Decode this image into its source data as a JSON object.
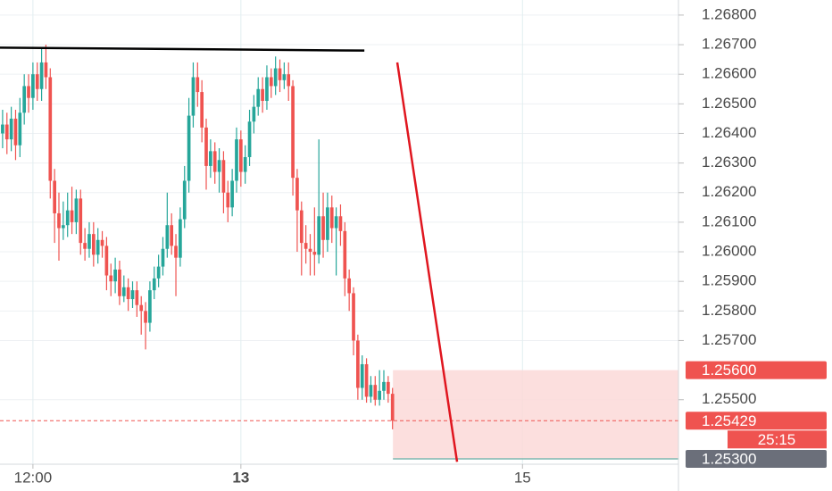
{
  "chart_data": {
    "type": "candlestick",
    "categories": [
      null,
      null,
      null,
      null,
      null,
      null,
      null,
      null,
      null,
      null,
      null,
      null,
      null,
      null,
      null,
      null,
      null,
      null,
      null,
      null,
      null,
      null,
      null,
      null,
      null,
      null,
      null,
      null,
      null,
      null,
      null,
      null,
      null,
      null,
      null,
      null,
      null,
      null,
      null,
      null,
      null,
      null,
      null,
      null,
      null,
      null,
      null,
      null,
      null,
      null,
      null,
      null,
      null,
      null,
      null,
      null,
      null,
      null,
      null,
      null,
      null,
      null,
      null,
      null,
      null,
      null,
      null,
      null,
      null,
      null,
      null,
      null,
      null,
      null,
      null,
      null,
      null,
      null,
      null,
      null,
      null,
      null,
      null,
      null,
      null,
      null,
      null,
      null,
      null,
      null,
      null
    ],
    "open": [
      1.264,
      1.2643,
      1.2638,
      1.2645,
      1.2636,
      1.2647,
      1.2656,
      1.2652,
      1.266,
      1.2655,
      1.2664,
      1.2659,
      1.2624,
      1.2613,
      1.2608,
      1.2609,
      1.2614,
      1.261,
      1.2618,
      1.2603,
      1.2601,
      1.2606,
      1.2599,
      1.2604,
      1.2602,
      1.2592,
      1.259,
      1.2594,
      1.2585,
      1.2588,
      1.2584,
      1.2587,
      1.2582,
      1.258,
      1.2576,
      1.2587,
      1.2591,
      1.2595,
      1.2601,
      1.2609,
      1.2602,
      1.2598,
      1.2611,
      1.2624,
      1.2646,
      1.2659,
      1.2654,
      1.2642,
      1.2629,
      1.2634,
      1.2627,
      1.2631,
      1.262,
      1.2615,
      1.2624,
      1.2638,
      1.2627,
      1.2632,
      1.2644,
      1.2649,
      1.2655,
      1.2651,
      1.2659,
      1.2656,
      1.2662,
      1.2658,
      1.266,
      1.2656,
      1.2625,
      1.2614,
      1.2603,
      1.2601,
      1.26,
      1.2599,
      1.2612,
      1.2604,
      1.2615,
      1.2608,
      1.2612,
      1.2607,
      1.2591,
      1.2586,
      1.257,
      1.2554,
      1.2562,
      1.2551,
      1.2555,
      1.255,
      1.2553,
      1.2556,
      1.2552
    ],
    "high": [
      1.2648,
      1.2647,
      1.2649,
      1.2648,
      1.2652,
      1.266,
      1.266,
      1.2664,
      1.2664,
      1.2669,
      1.267,
      1.2662,
      1.2628,
      1.262,
      1.2617,
      1.262,
      1.2622,
      1.2621,
      1.2621,
      1.2608,
      1.261,
      1.261,
      1.2608,
      1.2607,
      1.2605,
      1.2596,
      1.2598,
      1.2597,
      1.2592,
      1.2591,
      1.259,
      1.259,
      1.2585,
      1.2583,
      1.259,
      1.2595,
      1.2599,
      1.2605,
      1.262,
      1.2613,
      1.2606,
      1.2615,
      1.2629,
      1.2652,
      1.2664,
      1.2664,
      1.2658,
      1.2645,
      1.2638,
      1.2637,
      1.2635,
      1.2634,
      1.2624,
      1.2628,
      1.2642,
      1.2641,
      1.2636,
      1.2648,
      1.2653,
      1.2659,
      1.2659,
      1.2663,
      1.2662,
      1.2666,
      1.2665,
      1.2664,
      1.2664,
      1.2658,
      1.2628,
      1.2617,
      1.2609,
      1.2606,
      1.2615,
      1.2638,
      1.262,
      1.262,
      1.2619,
      1.2615,
      1.2616,
      1.261,
      1.2594,
      1.2588,
      1.2572,
      1.2565,
      1.2564,
      1.2558,
      1.2558,
      1.256,
      1.256,
      1.2558,
      1.2554
    ],
    "low": [
      1.2635,
      1.2633,
      1.2634,
      1.2631,
      1.2632,
      1.2643,
      1.2647,
      1.2648,
      1.2651,
      1.2651,
      1.2655,
      1.2618,
      1.2603,
      1.2597,
      1.2604,
      1.2605,
      1.2606,
      1.2606,
      1.2599,
      1.2597,
      1.2598,
      1.2595,
      1.2596,
      1.2598,
      1.2587,
      1.2585,
      1.2586,
      1.2582,
      1.2583,
      1.258,
      1.2581,
      1.2578,
      1.2572,
      1.2567,
      1.2573,
      1.2584,
      1.2588,
      1.2592,
      1.2598,
      1.2599,
      1.2585,
      1.2595,
      1.2608,
      1.262,
      1.2642,
      1.2649,
      1.2637,
      1.2621,
      1.2625,
      1.2623,
      1.262,
      1.2613,
      1.261,
      1.2612,
      1.262,
      1.2622,
      1.2623,
      1.2629,
      1.264,
      1.2646,
      1.2647,
      1.2648,
      1.2652,
      1.2653,
      1.2654,
      1.2655,
      1.2651,
      1.2619,
      1.26,
      1.2592,
      1.2596,
      1.2592,
      1.2592,
      1.2596,
      1.2598,
      1.26,
      1.2603,
      1.2592,
      1.2602,
      1.2585,
      1.258,
      1.2565,
      1.255,
      1.255,
      1.2549,
      1.2549,
      1.2548,
      1.2548,
      1.255,
      1.2549,
      1.254
    ],
    "close": [
      1.2643,
      1.2638,
      1.2645,
      1.2636,
      1.2647,
      1.2656,
      1.2652,
      1.266,
      1.2655,
      1.2664,
      1.2659,
      1.2624,
      1.2613,
      1.2608,
      1.2609,
      1.2614,
      1.261,
      1.2618,
      1.2603,
      1.2601,
      1.2606,
      1.2599,
      1.2604,
      1.2602,
      1.2592,
      1.259,
      1.2594,
      1.2585,
      1.2588,
      1.2584,
      1.2587,
      1.2582,
      1.258,
      1.2576,
      1.2587,
      1.2591,
      1.2595,
      1.2601,
      1.2609,
      1.2602,
      1.2598,
      1.2611,
      1.2624,
      1.2646,
      1.2659,
      1.2654,
      1.2642,
      1.2629,
      1.2634,
      1.2627,
      1.2631,
      1.262,
      1.2615,
      1.2624,
      1.2638,
      1.2627,
      1.2632,
      1.2644,
      1.2649,
      1.2655,
      1.2651,
      1.2659,
      1.2656,
      1.2662,
      1.2658,
      1.266,
      1.2656,
      1.2625,
      1.2614,
      1.2603,
      1.2601,
      1.26,
      1.2599,
      1.2612,
      1.2604,
      1.2615,
      1.2608,
      1.2612,
      1.2607,
      1.2591,
      1.2586,
      1.257,
      1.2554,
      1.2562,
      1.2551,
      1.2555,
      1.255,
      1.2553,
      1.2556,
      1.2552,
      1.25429
    ],
    "up_color": "#26a69a",
    "down_color": "#ef5350",
    "xlim": [
      -0.6,
      156
    ],
    "xticks": [
      {
        "value": 7,
        "label": "12:00"
      },
      {
        "value": 55,
        "label": "13"
      },
      {
        "value": 120,
        "label": "15"
      }
    ],
    "ylim": [
      1.25282,
      1.26851
    ],
    "yticks": [
      {
        "value": 1.268,
        "label": "1.26800"
      },
      {
        "value": 1.267,
        "label": "1.26700"
      },
      {
        "value": 1.266,
        "label": "1.26600"
      },
      {
        "value": 1.265,
        "label": "1.26500"
      },
      {
        "value": 1.264,
        "label": "1.26400"
      },
      {
        "value": 1.263,
        "label": "1.26300"
      },
      {
        "value": 1.262,
        "label": "1.26200"
      },
      {
        "value": 1.261,
        "label": "1.26100"
      },
      {
        "value": 1.26,
        "label": "1.26000"
      },
      {
        "value": 1.259,
        "label": "1.25900"
      },
      {
        "value": 1.258,
        "label": "1.25800"
      },
      {
        "value": 1.257,
        "label": "1.25700"
      },
      {
        "value": 1.255,
        "label": "1.25500"
      }
    ],
    "grid": true,
    "trendline": {
      "x": [
        -0.6,
        83.5
      ],
      "y": [
        1.2669,
        1.2668
      ],
      "color": "#000000"
    },
    "projection": {
      "x": [
        91.1,
        104.9
      ],
      "y": [
        1.2664,
        1.2529
      ],
      "color": "#e0161f"
    },
    "zone": {
      "x": 90.1,
      "top": 1.256,
      "bottom": 1.253,
      "color": "#fcd9d8"
    },
    "price_tags": [
      {
        "value": 1.256,
        "label": "1.25600",
        "color": "#ef5350"
      },
      {
        "value": 1.25429,
        "label": "1.25429",
        "color": "#ef5350"
      },
      {
        "value": 1.253,
        "label": "1.25300",
        "color": "#6b6f7a"
      }
    ],
    "countdown": "25:15"
  }
}
